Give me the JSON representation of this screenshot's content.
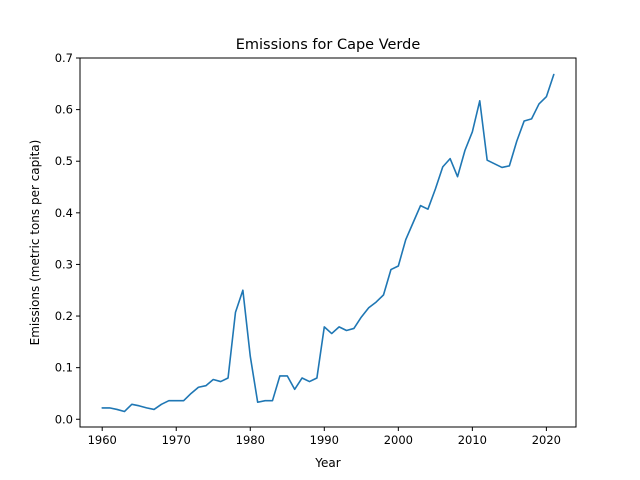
{
  "chart_data": {
    "type": "line",
    "title": "Emissions for Cape Verde",
    "xlabel": "Year",
    "ylabel": "Emissions (metric tons per capita)",
    "xlim": [
      1957,
      2024
    ],
    "ylim": [
      -0.015,
      0.7
    ],
    "xticks": [
      1960,
      1970,
      1980,
      1990,
      2000,
      2010,
      2020
    ],
    "yticks": [
      0.0,
      0.1,
      0.2,
      0.3,
      0.4,
      0.5,
      0.6,
      0.7
    ],
    "ytick_labels": [
      "0.0",
      "0.1",
      "0.2",
      "0.3",
      "0.4",
      "0.5",
      "0.6",
      "0.7"
    ],
    "grid": false,
    "line_color": "#1f77b4",
    "series": [
      {
        "x": [
          1960,
          1961,
          1962,
          1963,
          1964,
          1965,
          1966,
          1967,
          1968,
          1969,
          1970,
          1971,
          1972,
          1973,
          1974,
          1975,
          1976,
          1977,
          1978,
          1979,
          1980,
          1981,
          1982,
          1983,
          1984,
          1985,
          1986,
          1987,
          1988,
          1989,
          1990,
          1991,
          1992,
          1993,
          1994,
          1995,
          1996,
          1997,
          1998,
          1999,
          2000,
          2001,
          2002,
          2003,
          2004,
          2005,
          2006,
          2007,
          2008,
          2009,
          2010,
          2011,
          2012,
          2013,
          2014,
          2015,
          2016,
          2017,
          2018,
          2019,
          2020,
          2021
        ],
        "values": [
          0.022,
          0.022,
          0.019,
          0.015,
          0.029,
          0.026,
          0.022,
          0.019,
          0.029,
          0.036,
          0.036,
          0.036,
          0.05,
          0.062,
          0.065,
          0.077,
          0.073,
          0.08,
          0.207,
          0.25,
          0.122,
          0.033,
          0.036,
          0.036,
          0.084,
          0.084,
          0.058,
          0.08,
          0.073,
          0.08,
          0.179,
          0.166,
          0.179,
          0.172,
          0.176,
          0.198,
          0.216,
          0.227,
          0.241,
          0.29,
          0.297,
          0.348,
          0.381,
          0.414,
          0.407,
          0.446,
          0.489,
          0.505,
          0.47,
          0.521,
          0.557,
          0.617,
          0.502,
          0.495,
          0.488,
          0.491,
          0.539,
          0.578,
          0.582,
          0.611,
          0.625,
          0.668
        ]
      }
    ]
  }
}
